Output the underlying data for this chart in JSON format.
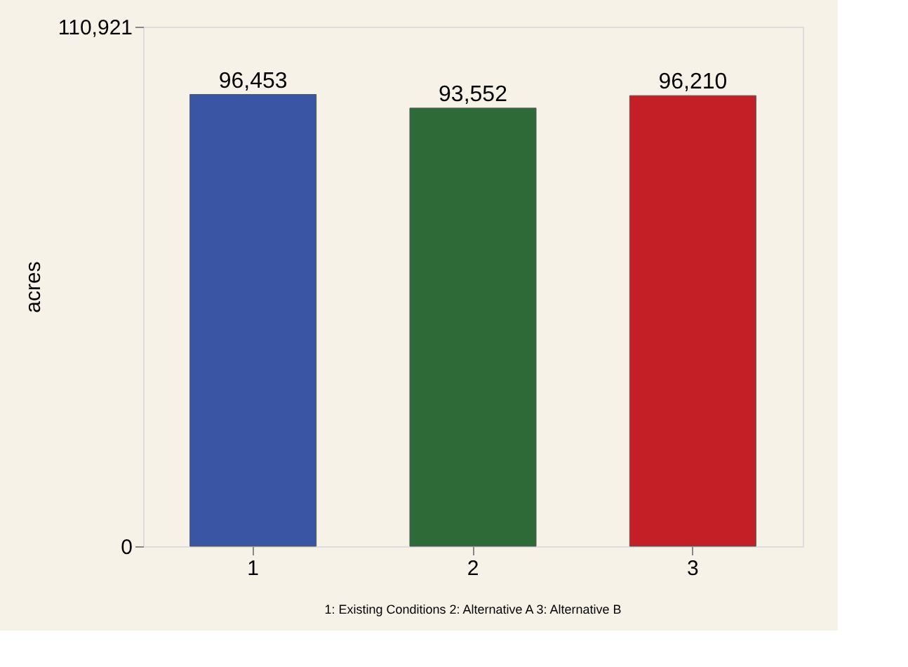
{
  "chart_data": {
    "type": "bar",
    "categories": [
      "1",
      "2",
      "3"
    ],
    "values": [
      96453,
      93552,
      96210
    ],
    "colors": [
      "#3b55a5",
      "#2e6a38",
      "#c41e26"
    ],
    "value_labels": [
      "96,453",
      "93,552",
      "96,210"
    ],
    "ylabel": "acres",
    "ylim": [
      0,
      110921
    ],
    "yticks": [
      0,
      {
        "value": 110921,
        "label": "110,921"
      }
    ],
    "grid": false,
    "legend": false,
    "annotations": [
      "1: Existing Conditions 2: Alternative A     3: Alternative B"
    ]
  }
}
